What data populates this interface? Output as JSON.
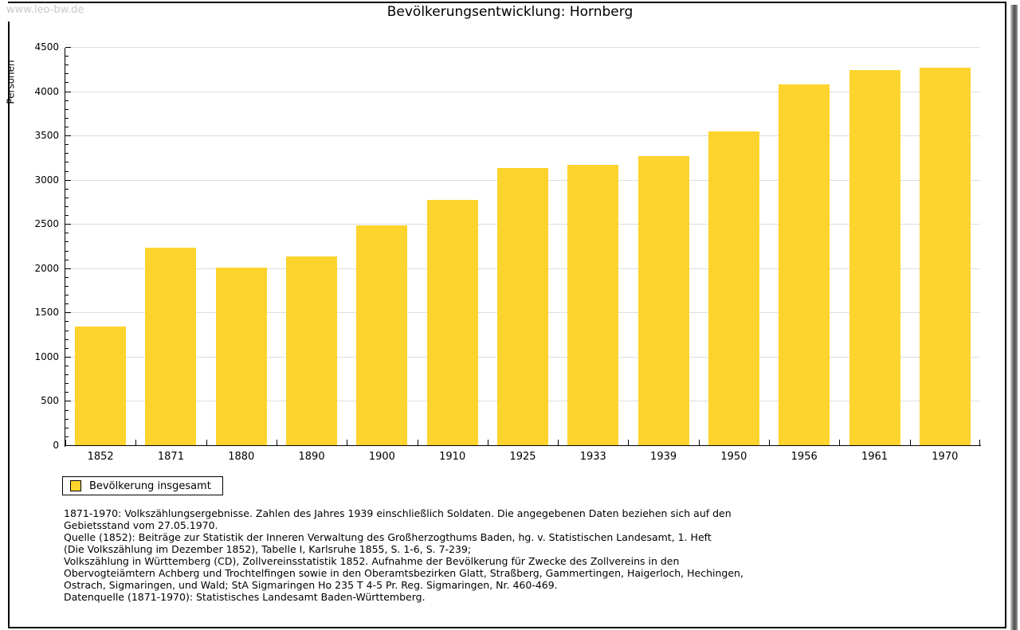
{
  "watermark": "www.leo-bw.de",
  "title": "Bevölkerungsentwicklung: Hornberg",
  "colors": {
    "bar": "#FDD32D",
    "grid": "#DDDDDD",
    "axis": "#000000",
    "watermark_text": "#C9C9C9"
  },
  "chart_data": {
    "type": "bar",
    "title": "Bevölkerungsentwicklung: Hornberg",
    "categories": [
      "1852",
      "1871",
      "1880",
      "1890",
      "1900",
      "1910",
      "1925",
      "1933",
      "1939",
      "1950",
      "1956",
      "1961",
      "1970"
    ],
    "values": [
      1340,
      2235,
      2005,
      2130,
      2480,
      2770,
      3130,
      3165,
      3265,
      3550,
      4080,
      4240,
      4265
    ],
    "xlabel": "",
    "ylabel": "Personen",
    "ylim": [
      0,
      4500
    ],
    "ytick_step": 500,
    "minor_tick_step": 100,
    "grid": true,
    "legend": [
      "Bevölkerung insgesamt"
    ],
    "legend_position": "bottom-left",
    "bar_color": "#FDD32D"
  },
  "legend": {
    "label": "Bevölkerung insgesamt"
  },
  "footnotes": {
    "lines": [
      "1871-1970: Volkszählungsergebnisse. Zahlen des Jahres 1939 einschließlich Soldaten. Die angegebenen Daten beziehen sich auf den",
      "Gebietsstand vom 27.05.1970.",
      "Quelle (1852): Beiträge zur Statistik der Inneren Verwaltung des Großherzogthums Baden, hg. v. Statistischen Landesamt, 1. Heft",
      "(Die Volkszählung im Dezember 1852), Tabelle I, Karlsruhe 1855, S. 1-6, S. 7-239;",
      "Volkszählung in Württemberg (CD), Zollvereinsstatistik 1852. Aufnahme der Bevölkerung für Zwecke des Zollvereins in den",
      "Obervogteiämtern Achberg und Trochtelfingen sowie in den Oberamtsbezirken Glatt, Straßberg, Gammertingen, Haigerloch, Hechingen,",
      "Ostrach, Sigmaringen, und Wald; StA Sigmaringen Ho 235 T 4-5 Pr. Reg. Sigmaringen, Nr. 460-469."
    ],
    "datasource": "Datenquelle (1871-1970): Statistisches Landesamt Baden-Württemberg."
  }
}
